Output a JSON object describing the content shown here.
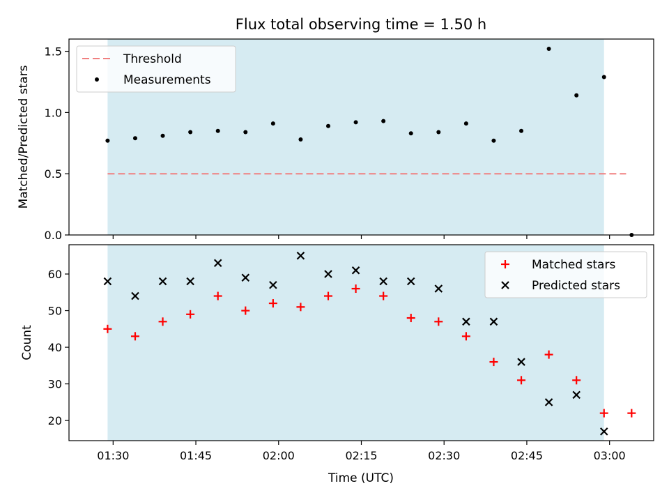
{
  "chart_data": {
    "title": "Flux total observing time = 1.50 h",
    "xlabel": "Time (UTC)",
    "x_ticks": [
      "01:30",
      "01:45",
      "02:00",
      "02:15",
      "02:30",
      "02:45",
      "03:00"
    ],
    "x_tick_times": [
      "01:30",
      "01:45",
      "02:00",
      "02:15",
      "02:30",
      "02:45",
      "03:00"
    ],
    "xlim": [
      "01:22",
      "03:08"
    ],
    "observing_window": [
      "01:29",
      "02:59"
    ],
    "colors": {
      "shade": "#add8e6",
      "threshold": "#f08080",
      "measurements": "#000000",
      "matched": "#ff0000",
      "predicted": "#000000"
    },
    "panels": [
      {
        "type": "scatter",
        "ylabel": "Matched/Predicted stars",
        "ylim": [
          0.0,
          1.6
        ],
        "y_ticks": [
          "0.0",
          "0.5",
          "1.0",
          "1.5"
        ],
        "y_tick_values": [
          0.0,
          0.5,
          1.0,
          1.5
        ],
        "grid": false,
        "legend_position": "upper-left",
        "legend": [
          "Threshold",
          "Measurements"
        ],
        "threshold": {
          "name": "Threshold",
          "value": 0.5,
          "x_range": [
            "01:29",
            "03:03"
          ]
        },
        "series": [
          {
            "name": "Measurements",
            "marker": "dot",
            "x": [
              "01:29",
              "01:34",
              "01:39",
              "01:44",
              "01:49",
              "01:54",
              "01:59",
              "02:04",
              "02:09",
              "02:14",
              "02:19",
              "02:24",
              "02:29",
              "02:34",
              "02:39",
              "02:44",
              "02:49",
              "02:54",
              "02:59",
              "03:04"
            ],
            "values": [
              0.77,
              0.79,
              0.81,
              0.84,
              0.85,
              0.84,
              0.91,
              0.78,
              0.89,
              0.92,
              0.93,
              0.83,
              0.84,
              0.91,
              0.77,
              0.85,
              1.52,
              1.14,
              1.29,
              0.0
            ]
          }
        ]
      },
      {
        "type": "scatter",
        "ylabel": "Count",
        "ylim": [
          14.5,
          68
        ],
        "y_ticks": [
          "20",
          "30",
          "40",
          "50",
          "60"
        ],
        "y_tick_values": [
          20,
          30,
          40,
          50,
          60
        ],
        "grid": false,
        "legend_position": "upper-right",
        "legend": [
          "Matched stars",
          "Predicted stars"
        ],
        "series": [
          {
            "name": "Matched stars",
            "marker": "plus",
            "x": [
              "01:29",
              "01:34",
              "01:39",
              "01:44",
              "01:49",
              "01:54",
              "01:59",
              "02:04",
              "02:09",
              "02:14",
              "02:19",
              "02:24",
              "02:29",
              "02:34",
              "02:39",
              "02:44",
              "02:49",
              "02:54",
              "02:59",
              "03:04"
            ],
            "values": [
              45,
              43,
              47,
              49,
              54,
              50,
              52,
              51,
              54,
              56,
              54,
              48,
              47,
              43,
              36,
              31,
              38,
              31,
              22,
              22
            ]
          },
          {
            "name": "Predicted stars",
            "marker": "x",
            "x": [
              "01:29",
              "01:34",
              "01:39",
              "01:44",
              "01:49",
              "01:54",
              "01:59",
              "02:04",
              "02:09",
              "02:14",
              "02:19",
              "02:24",
              "02:29",
              "02:34",
              "02:39",
              "02:44",
              "02:49",
              "02:54",
              "02:59"
            ],
            "values": [
              58,
              54,
              58,
              58,
              63,
              59,
              57,
              65,
              60,
              61,
              58,
              58,
              56,
              47,
              47,
              36,
              25,
              27,
              17
            ]
          }
        ]
      }
    ]
  }
}
